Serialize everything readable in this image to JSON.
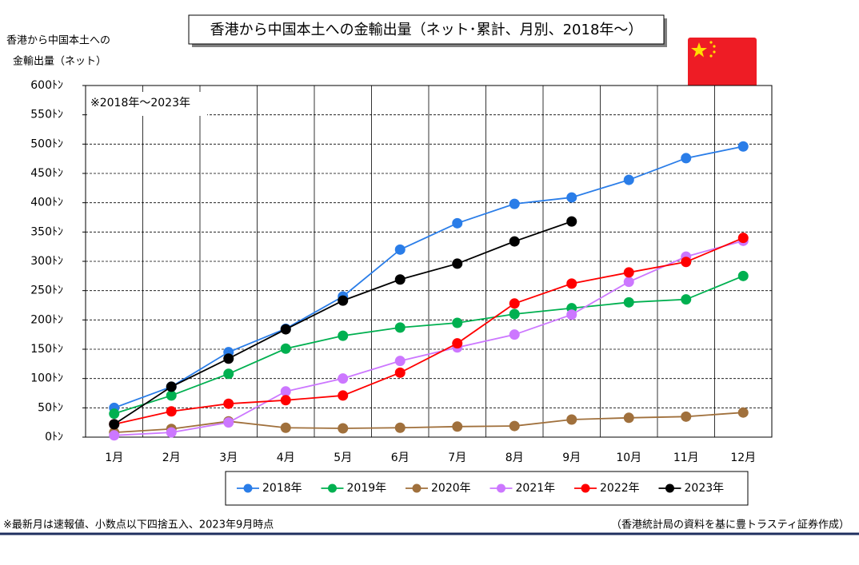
{
  "chart_data": {
    "type": "line",
    "title": "香港から中国本土への金輸出量（ネット･累計、月別、2018年～）",
    "ylabel": [
      "香港から中国本土への",
      "金輸出量（ネット）"
    ],
    "note": "※2018年～2023年",
    "footnote": "※最新月は速報値、小数点以下四捨五入、2023年9月時点",
    "source": "（香港統計局の資料を基に豊トラスティ証券作成）",
    "categories": [
      "1月",
      "2月",
      "3月",
      "4月",
      "5月",
      "6月",
      "7月",
      "8月",
      "9月",
      "10月",
      "11月",
      "12月"
    ],
    "series": [
      {
        "name": "2018年",
        "color": "#2a7de8",
        "values": [
          50,
          86,
          145,
          185,
          240,
          320,
          365,
          398,
          409,
          439,
          476,
          496
        ]
      },
      {
        "name": "2019年",
        "color": "#00b050",
        "values": [
          40,
          71,
          108,
          151,
          173,
          187,
          195,
          210,
          220,
          230,
          235,
          275
        ]
      },
      {
        "name": "2020年",
        "color": "#a0703c",
        "values": [
          8,
          14,
          27,
          16,
          15,
          16,
          18,
          19,
          30,
          33,
          35,
          42
        ]
      },
      {
        "name": "2021年",
        "color": "#cc77ff",
        "values": [
          3,
          8,
          25,
          78,
          100,
          130,
          153,
          175,
          209,
          265,
          308,
          335
        ]
      },
      {
        "name": "2022年",
        "color": "#ff0000",
        "values": [
          22,
          44,
          57,
          63,
          71,
          110,
          160,
          228,
          262,
          281,
          299,
          340
        ]
      },
      {
        "name": "2023年",
        "color": "#000000",
        "values": [
          22,
          86,
          134,
          184,
          233,
          269,
          296,
          334,
          368,
          null,
          null,
          null
        ]
      }
    ],
    "ylim": [
      0,
      600
    ],
    "yticks": [
      {
        "value": 0,
        "label": "0ﾄﾝ"
      },
      {
        "value": 50,
        "label": "50ﾄﾝ"
      },
      {
        "value": 100,
        "label": "100ﾄﾝ"
      },
      {
        "value": 150,
        "label": "150ﾄﾝ"
      },
      {
        "value": 200,
        "label": "200ﾄﾝ"
      },
      {
        "value": 250,
        "label": "250ﾄﾝ"
      },
      {
        "value": 300,
        "label": "300ﾄﾝ"
      },
      {
        "value": 350,
        "label": "350ﾄﾝ"
      },
      {
        "value": 400,
        "label": "400ﾄﾝ"
      },
      {
        "value": 450,
        "label": "450ﾄﾝ"
      },
      {
        "value": 500,
        "label": "500ﾄﾝ"
      },
      {
        "value": 550,
        "label": "550ﾄﾝ"
      },
      {
        "value": 600,
        "label": "600ﾄﾝ"
      }
    ],
    "grid": true,
    "legend": "bottom"
  }
}
